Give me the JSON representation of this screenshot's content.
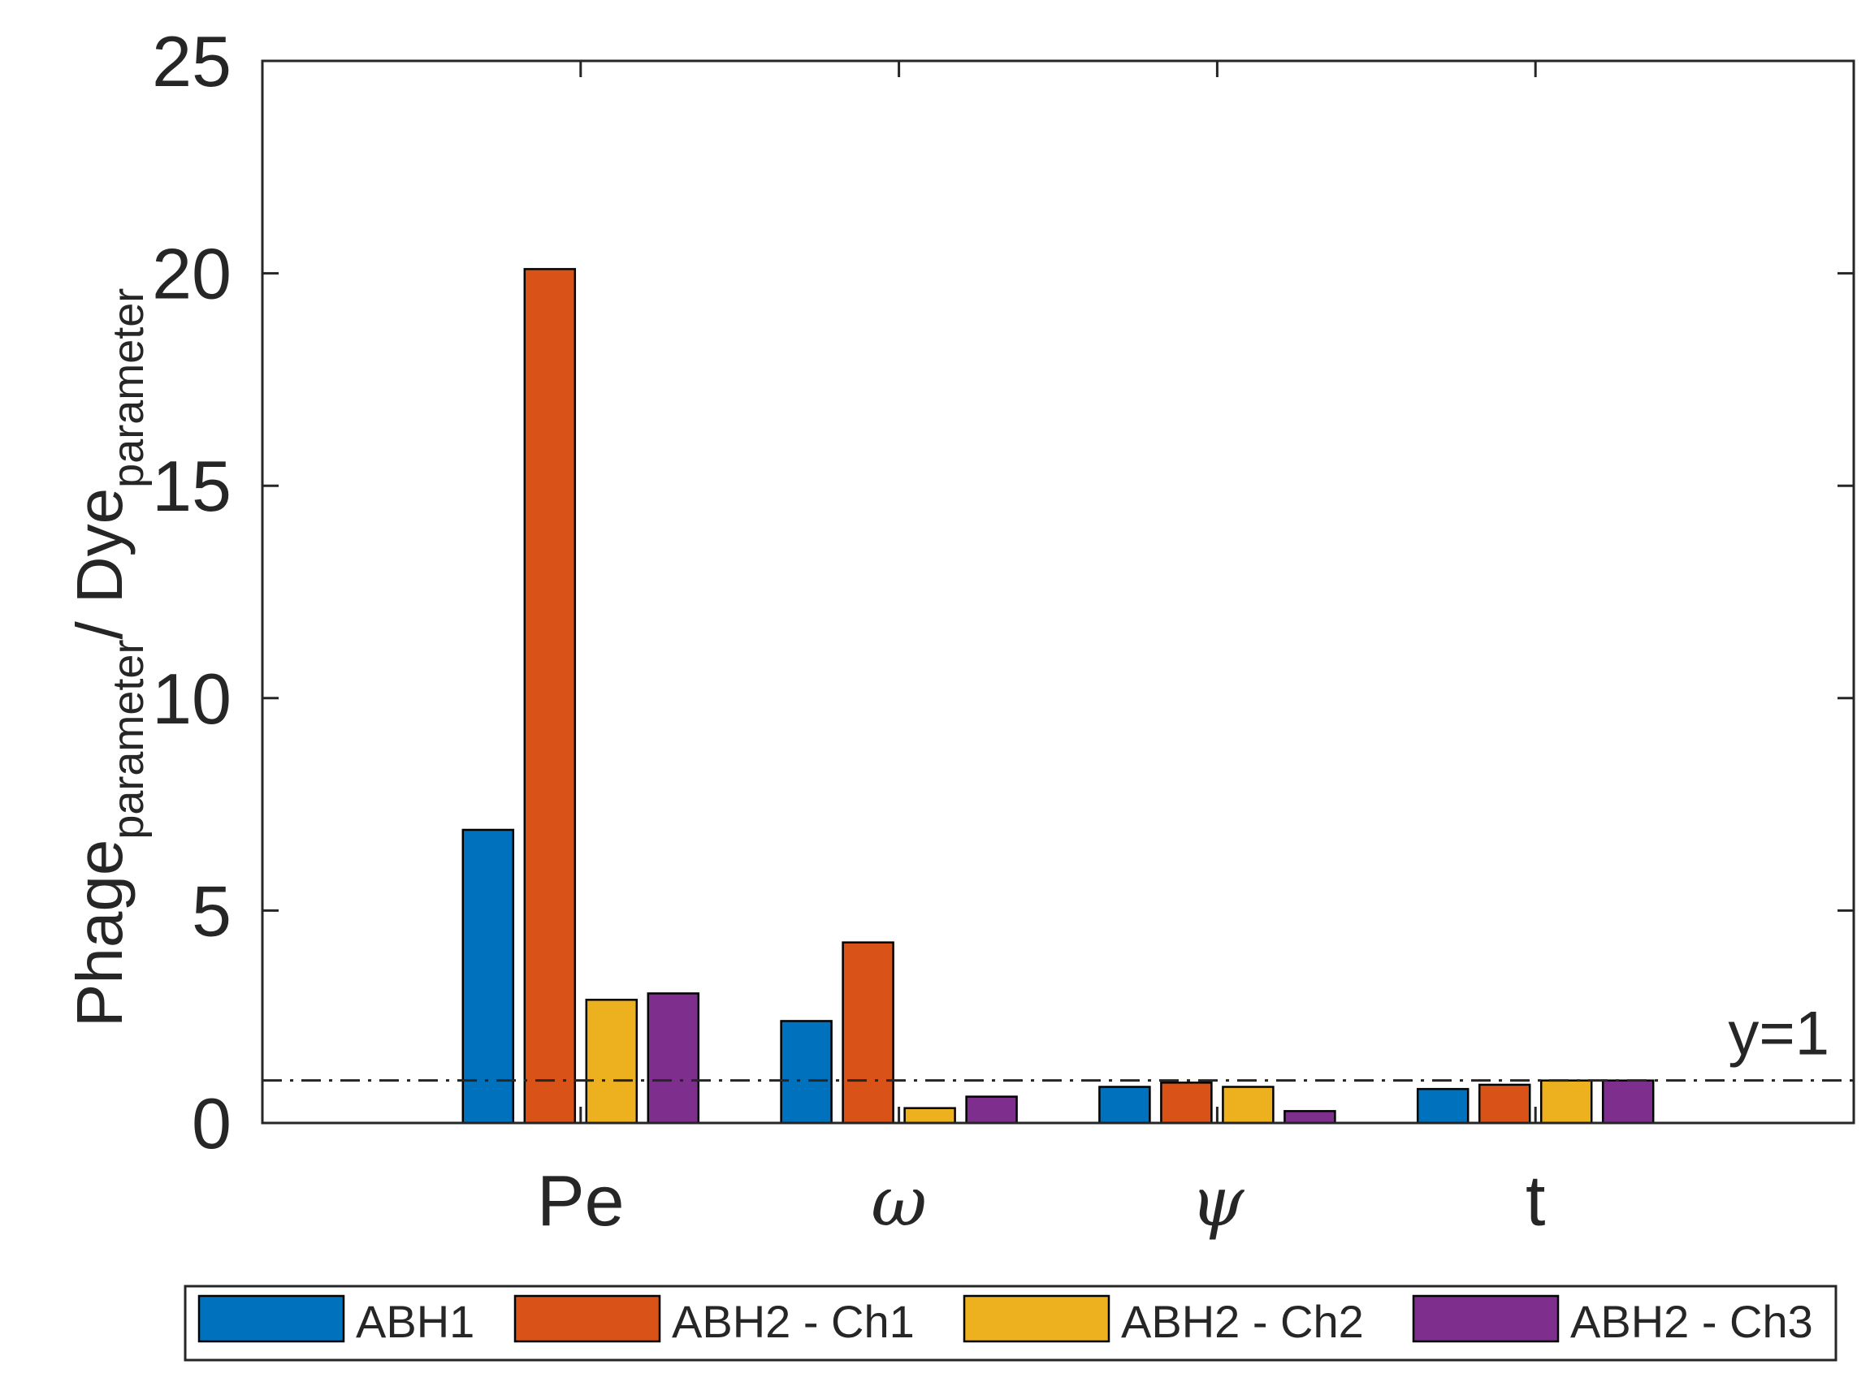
{
  "chart_data": {
    "type": "bar",
    "categories": [
      "Pe",
      "ω",
      "ψ",
      "t"
    ],
    "series": [
      {
        "name": "ABH1",
        "values": [
          6.9,
          2.4,
          0.85,
          0.8
        ],
        "color": "#0072BD"
      },
      {
        "name": "ABH2 - Ch1",
        "values": [
          20.1,
          4.25,
          0.95,
          0.9
        ],
        "color": "#D95319"
      },
      {
        "name": "ABH2 - Ch2",
        "values": [
          2.9,
          0.35,
          0.85,
          1.0
        ],
        "color": "#EDB120"
      },
      {
        "name": "ABH2 - Ch3",
        "values": [
          3.05,
          0.62,
          0.28,
          1.0
        ],
        "color": "#7E2F8E"
      }
    ],
    "ylim": [
      0,
      25
    ],
    "yticks": [
      "0",
      "5",
      "10",
      "15",
      "20",
      "25"
    ],
    "ylabel": {
      "main1": "Phage",
      "sub1": "parameter",
      "sep": "/ ",
      "main2": "Dye",
      "sub2": "parameter"
    },
    "reference_line": {
      "y": 1,
      "label": "y=1",
      "style": "dash-dot"
    },
    "legend_position": "bottom",
    "grid": false
  }
}
